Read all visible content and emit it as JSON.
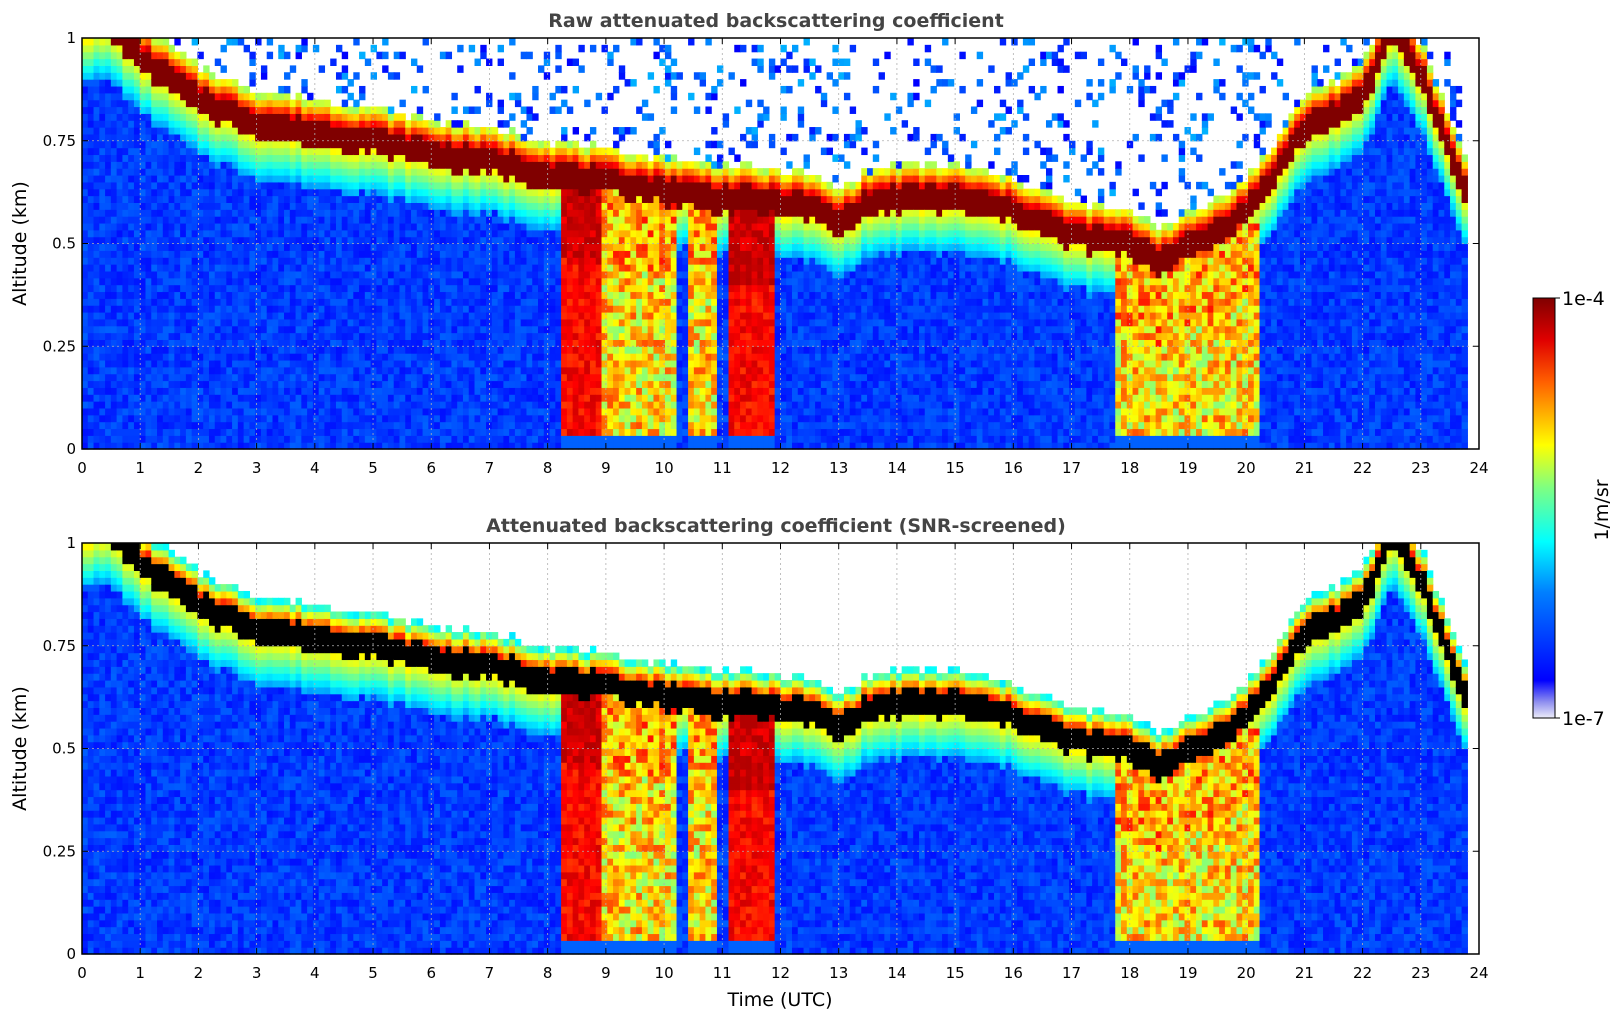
{
  "figure": {
    "cmap_name": "jet",
    "colors": {
      "title_text": "#444444",
      "screened_black": "#000000",
      "grid": "#b0b0b0"
    }
  },
  "chart_data": [
    {
      "type": "heatmap",
      "title": "Raw attenuated backscattering coefficient",
      "xlabel": "",
      "ylabel": "Altitude (km)",
      "xlim": [
        0,
        24
      ],
      "ylim": [
        0,
        1
      ],
      "x_ticks": [
        "0",
        "1",
        "2",
        "3",
        "4",
        "5",
        "6",
        "7",
        "8",
        "9",
        "10",
        "11",
        "12",
        "13",
        "14",
        "15",
        "16",
        "17",
        "18",
        "19",
        "20",
        "21",
        "22",
        "23",
        "24"
      ],
      "y_ticks": [
        "0",
        "0.25",
        "0.5",
        "0.75",
        "1"
      ],
      "grid": true,
      "data_end_hour": 23.8,
      "cloud_base_km": {
        "hours": [
          0.5,
          1,
          2,
          3,
          4,
          5,
          6,
          7,
          8,
          9,
          10,
          11,
          12,
          12.5,
          13,
          13.5,
          14,
          15,
          16,
          17,
          18,
          18.5,
          19,
          19.5,
          20,
          20.3,
          21,
          22,
          22.5,
          23,
          23.8
        ],
        "values": [
          1.0,
          0.92,
          0.82,
          0.76,
          0.74,
          0.72,
          0.69,
          0.67,
          0.64,
          0.62,
          0.6,
          0.58,
          0.57,
          0.56,
          0.52,
          0.57,
          0.58,
          0.58,
          0.55,
          0.49,
          0.47,
          0.43,
          0.46,
          0.5,
          0.55,
          0.6,
          0.75,
          0.82,
          1.0,
          0.88,
          0.58
        ]
      },
      "precipitation_bands_hours": [
        [
          8.2,
          9.0
        ],
        [
          9.0,
          10.2
        ],
        [
          10.4,
          10.9
        ],
        [
          11.1,
          11.9
        ],
        [
          17.8,
          20.2
        ]
      ],
      "strong_bands_hours": [
        [
          8.2,
          8.9
        ],
        [
          11.1,
          11.9
        ]
      ],
      "screened": false
    },
    {
      "type": "heatmap",
      "title": "Attenuated backscattering coefficient (SNR-screened)",
      "xlabel": "Time (UTC)",
      "ylabel": "Altitude (km)",
      "xlim": [
        0,
        24
      ],
      "ylim": [
        0,
        1
      ],
      "x_ticks": [
        "0",
        "1",
        "2",
        "3",
        "4",
        "5",
        "6",
        "7",
        "8",
        "9",
        "10",
        "11",
        "12",
        "13",
        "14",
        "15",
        "16",
        "17",
        "18",
        "19",
        "20",
        "21",
        "22",
        "23",
        "24"
      ],
      "y_ticks": [
        "0",
        "0.25",
        "0.5",
        "0.75",
        "1"
      ],
      "grid": true,
      "data_end_hour": 23.8,
      "cloud_base_km": {
        "hours": [
          0.5,
          1,
          2,
          3,
          4,
          5,
          6,
          7,
          8,
          9,
          10,
          11,
          12,
          12.5,
          13,
          13.5,
          14,
          15,
          16,
          17,
          18,
          18.5,
          19,
          19.5,
          20,
          20.3,
          21,
          22,
          22.5,
          23,
          23.8
        ],
        "values": [
          1.0,
          0.92,
          0.82,
          0.76,
          0.74,
          0.72,
          0.69,
          0.67,
          0.64,
          0.62,
          0.6,
          0.58,
          0.57,
          0.56,
          0.52,
          0.57,
          0.58,
          0.58,
          0.55,
          0.49,
          0.47,
          0.43,
          0.46,
          0.5,
          0.55,
          0.6,
          0.75,
          0.82,
          1.0,
          0.88,
          0.58
        ]
      },
      "precipitation_bands_hours": [
        [
          8.2,
          9.0
        ],
        [
          9.0,
          10.2
        ],
        [
          10.4,
          10.9
        ],
        [
          11.1,
          11.9
        ],
        [
          17.8,
          20.2
        ]
      ],
      "strong_bands_hours": [
        [
          8.2,
          8.9
        ],
        [
          11.1,
          11.9
        ]
      ],
      "screened": true
    }
  ],
  "colorbar": {
    "label": "1/m/sr",
    "max_label": "1e-4",
    "min_label": "1e-7",
    "range": [
      1e-07,
      0.0001
    ],
    "scale": "log"
  }
}
